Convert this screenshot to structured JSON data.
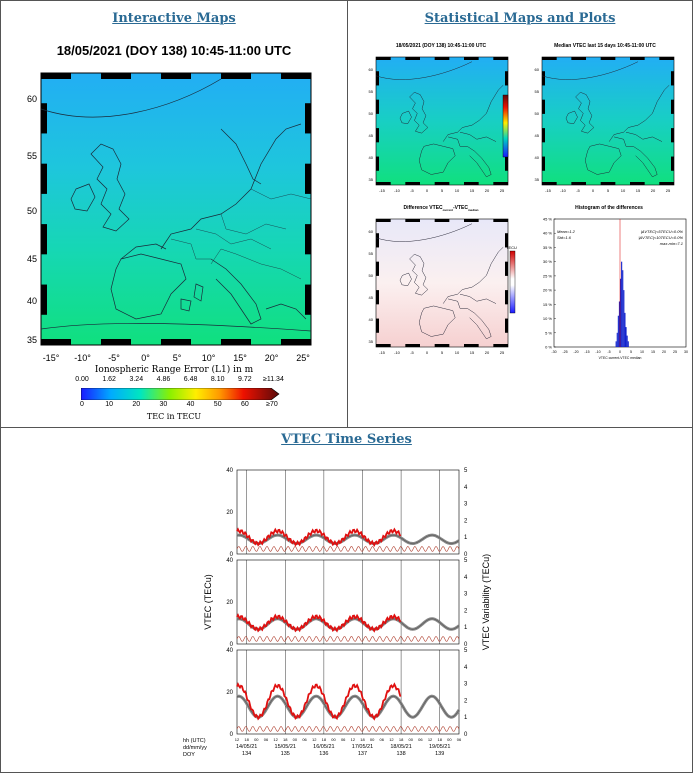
{
  "sections": {
    "interactive_maps": "Interactive Maps",
    "statistical": "Statistical Maps and Plots",
    "vtec_series": "VTEC Time Series"
  },
  "main_map": {
    "title": "18/05/2021 (DOY 138) 10:45-11:00 UTC",
    "lat_labels": [
      "60",
      "55",
      "50",
      "45",
      "40",
      "35"
    ],
    "lon_labels": [
      "-15",
      "-10",
      "-5",
      "0",
      "5",
      "10",
      "15",
      "20",
      "25"
    ],
    "range_label": "Ionospheric Range Error (L1) in m",
    "range_ticks": [
      "0.00",
      "1.62",
      "3.24",
      "4.86",
      "6.48",
      "8.10",
      "9.72",
      "≥11.34"
    ],
    "tec_ticks": [
      "0",
      "10",
      "20",
      "30",
      "40",
      "50",
      "60",
      "≥70"
    ],
    "tec_label": "TEC in TECU"
  },
  "small_maps": {
    "current_title": "18/05/2021 (DOY 138) 10:45-11:00 UTC",
    "median_title": "Median VTEC last 15 days 10:45-11:00 UTC",
    "diff_title": "Difference VTEC",
    "diff_sub1": "current",
    "diff_sub2": "median",
    "diff_unit": "TECU",
    "lat_labels": [
      "60",
      "55",
      "50",
      "45",
      "40",
      "35"
    ],
    "lon_labels": [
      "-15",
      "-10",
      "-5",
      "0",
      "5",
      "10",
      "15",
      "20",
      "25"
    ]
  },
  "histogram": {
    "title": "Histogram of the differences",
    "mean": "Mean=1.2",
    "std": "Std=1.6",
    "stat1": "|ΔVTEC|<5TECU=0.0%",
    "stat2": "|ΔVTEC|<10TECU=0.0%",
    "stat3": "max-min=7.1",
    "xlabel": "VTEC current-VTEC median",
    "y_ticks": [
      "45 %",
      "40 %",
      "35 %",
      "30 %",
      "25 %",
      "20 %",
      "15 %",
      "10 %",
      "5 %",
      "0 %"
    ],
    "x_ticks": [
      "-30",
      "-25",
      "-20",
      "-15",
      "-10",
      "-5",
      "0",
      "5",
      "10",
      "15",
      "20",
      "25",
      "30"
    ]
  },
  "chart_data": {
    "type": "line",
    "title": "",
    "ylabel": "VTEC (TECu)",
    "ylabel_right": "VTEC Variability (TECu)",
    "ylim": [
      0,
      40
    ],
    "ylim_right": [
      0,
      5
    ],
    "y_ticks": [
      "0",
      "20",
      "40"
    ],
    "y_right_ticks": [
      "0",
      "1",
      "2",
      "3",
      "4",
      "5"
    ],
    "row_labels": [
      "hh (UTC)",
      "dd/mm/yy",
      "DOY"
    ],
    "hour_ticks": [
      "12",
      "18",
      "00",
      "06",
      "12",
      "18",
      "00",
      "06",
      "12",
      "18",
      "00",
      "06",
      "12",
      "18",
      "00",
      "06",
      "12",
      "18",
      "00",
      "06",
      "12",
      "18",
      "00",
      "06"
    ],
    "days": [
      "14/05/21",
      "15/05/21",
      "16/05/21",
      "17/05/21",
      "18/05/21",
      "19/05/21"
    ],
    "doy": [
      "134",
      "135",
      "136",
      "137",
      "138",
      "139"
    ],
    "panels": [
      {
        "peak_current": 11,
        "night": 5,
        "peak_median": 9
      },
      {
        "peak_current": 13,
        "night": 7,
        "peak_median": 12
      },
      {
        "peak_current": 23,
        "night": 8,
        "peak_median": 18
      }
    ]
  }
}
